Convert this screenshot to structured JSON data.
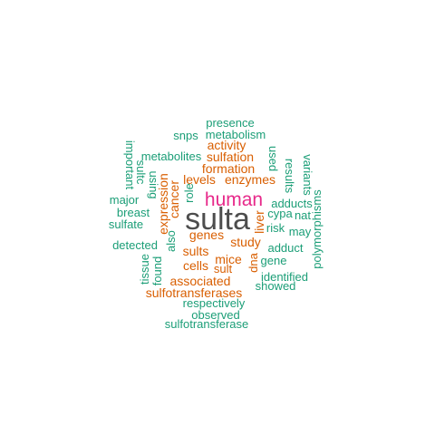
{
  "palette": {
    "dark": "#4d4d4d",
    "magenta": "#e7298a",
    "orange": "#d95f02",
    "teal": "#1b9e77"
  },
  "words": [
    {
      "text": "sulta",
      "color": "dark",
      "weight": 1.0
    },
    {
      "text": "human",
      "color": "magenta",
      "weight": 0.72
    },
    {
      "text": "genes",
      "color": "orange",
      "weight": 0.55
    },
    {
      "text": "enzymes",
      "color": "orange",
      "weight": 0.52
    },
    {
      "text": "sulfation",
      "color": "orange",
      "weight": 0.5
    },
    {
      "text": "formation",
      "color": "orange",
      "weight": 0.5
    },
    {
      "text": "levels",
      "color": "orange",
      "weight": 0.5
    },
    {
      "text": "activity",
      "color": "orange",
      "weight": 0.5
    },
    {
      "text": "expression",
      "color": "orange",
      "weight": 0.5
    },
    {
      "text": "cancer",
      "color": "orange",
      "weight": 0.5
    },
    {
      "text": "liver",
      "color": "orange",
      "weight": 0.5
    },
    {
      "text": "study",
      "color": "orange",
      "weight": 0.5
    },
    {
      "text": "sults",
      "color": "orange",
      "weight": 0.5
    },
    {
      "text": "mice",
      "color": "orange",
      "weight": 0.5
    },
    {
      "text": "cells",
      "color": "orange",
      "weight": 0.5
    },
    {
      "text": "sult",
      "color": "orange",
      "weight": 0.45
    },
    {
      "text": "dna",
      "color": "orange",
      "weight": 0.45
    },
    {
      "text": "associated",
      "color": "orange",
      "weight": 0.5
    },
    {
      "text": "sulfotransferases",
      "color": "orange",
      "weight": 0.5
    },
    {
      "text": "presence",
      "color": "teal",
      "weight": 0.4
    },
    {
      "text": "snps",
      "color": "teal",
      "weight": 0.4
    },
    {
      "text": "metabolism",
      "color": "teal",
      "weight": 0.4
    },
    {
      "text": "metabolites",
      "color": "teal",
      "weight": 0.4
    },
    {
      "text": "important",
      "color": "teal",
      "weight": 0.4
    },
    {
      "text": "sultc",
      "color": "teal",
      "weight": 0.4
    },
    {
      "text": "using",
      "color": "teal",
      "weight": 0.4
    },
    {
      "text": "role",
      "color": "teal",
      "weight": 0.4
    },
    {
      "text": "major",
      "color": "teal",
      "weight": 0.4
    },
    {
      "text": "breast",
      "color": "teal",
      "weight": 0.4
    },
    {
      "text": "sulfate",
      "color": "teal",
      "weight": 0.4
    },
    {
      "text": "used",
      "color": "teal",
      "weight": 0.4
    },
    {
      "text": "results",
      "color": "teal",
      "weight": 0.4
    },
    {
      "text": "variants",
      "color": "teal",
      "weight": 0.4
    },
    {
      "text": "adducts",
      "color": "teal",
      "weight": 0.4
    },
    {
      "text": "cypa",
      "color": "teal",
      "weight": 0.4
    },
    {
      "text": "nat",
      "color": "teal",
      "weight": 0.4
    },
    {
      "text": "risk",
      "color": "teal",
      "weight": 0.4
    },
    {
      "text": "may",
      "color": "teal",
      "weight": 0.4
    },
    {
      "text": "polymorphisms",
      "color": "teal",
      "weight": 0.4
    },
    {
      "text": "adduct",
      "color": "teal",
      "weight": 0.4
    },
    {
      "text": "gene",
      "color": "teal",
      "weight": 0.4
    },
    {
      "text": "detected",
      "color": "teal",
      "weight": 0.4
    },
    {
      "text": "also",
      "color": "teal",
      "weight": 0.4
    },
    {
      "text": "tissue",
      "color": "teal",
      "weight": 0.4
    },
    {
      "text": "found",
      "color": "teal",
      "weight": 0.4
    },
    {
      "text": "identified",
      "color": "teal",
      "weight": 0.4
    },
    {
      "text": "showed",
      "color": "teal",
      "weight": 0.4
    },
    {
      "text": "respectively",
      "color": "teal",
      "weight": 0.4
    },
    {
      "text": "observed",
      "color": "teal",
      "weight": 0.4
    },
    {
      "text": "sulfotransferase",
      "color": "teal",
      "weight": 0.4
    }
  ]
}
